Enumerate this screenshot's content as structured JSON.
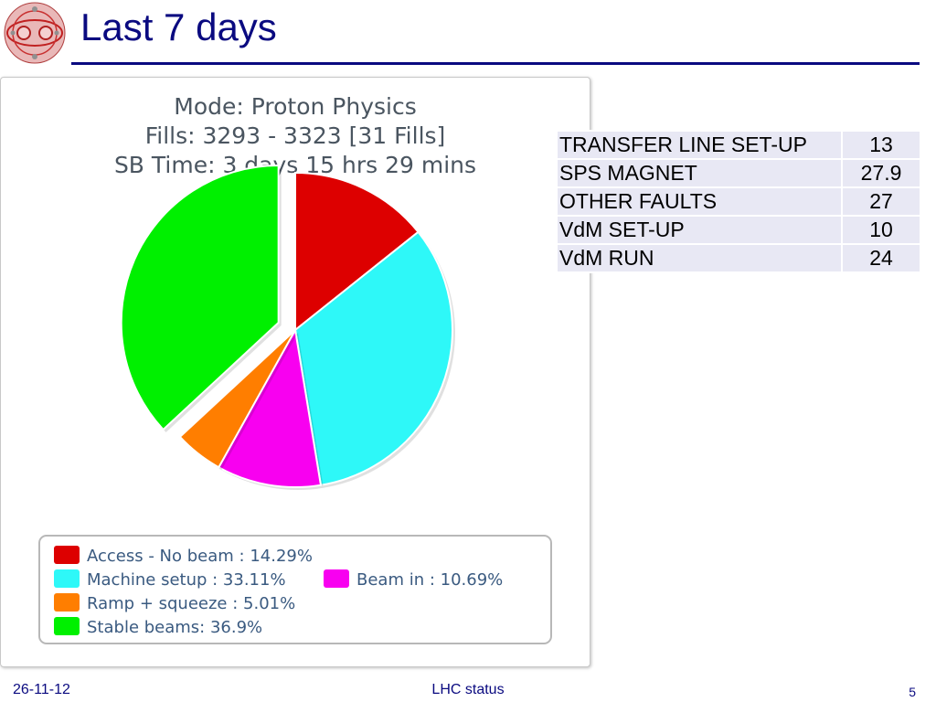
{
  "slide": {
    "title": "Last 7 days",
    "footer_date": "26-11-12",
    "footer_center": "LHC status",
    "page_number": "5"
  },
  "colors": {
    "title": "#0a0a80",
    "access": "#dd0000",
    "machine_setup": "#2ef8f8",
    "beam_in": "#f800f0",
    "ramp_squeeze": "#ff7e00",
    "stable_beams": "#00f000"
  },
  "fault_table": {
    "rows": [
      {
        "label": "TRANSFER LINE SET-UP",
        "value": "13"
      },
      {
        "label": "SPS MAGNET",
        "value": "27.9"
      },
      {
        "label": "OTHER FAULTS",
        "value": "27"
      },
      {
        "label": "VdM SET-UP",
        "value": "10"
      },
      {
        "label": "VdM RUN",
        "value": "24"
      }
    ]
  },
  "chart_data": {
    "type": "pie",
    "title_lines": [
      "Mode: Proton Physics",
      "Fills: 3293 - 3323 [31 Fills]",
      "SB Time: 3 days 15 hrs 29 mins"
    ],
    "slices": [
      {
        "name": "Access - No beam",
        "value": 14.29,
        "legend": "Access - No beam : 14.29%",
        "color": "#dd0000",
        "exploded": false
      },
      {
        "name": "Machine setup",
        "value": 33.11,
        "legend": "Machine setup : 33.11%",
        "color": "#2ef8f8",
        "exploded": false
      },
      {
        "name": "Beam in",
        "value": 10.69,
        "legend": "Beam in : 10.69%",
        "color": "#f800f0",
        "exploded": false
      },
      {
        "name": "Ramp + squeeze",
        "value": 5.01,
        "legend": "Ramp + squeeze : 5.01%",
        "color": "#ff7e00",
        "exploded": false
      },
      {
        "name": "Stable beams",
        "value": 36.9,
        "legend": "Stable beams: 36.9%",
        "color": "#00f000",
        "exploded": true
      }
    ],
    "legend_placement": "bottom"
  }
}
